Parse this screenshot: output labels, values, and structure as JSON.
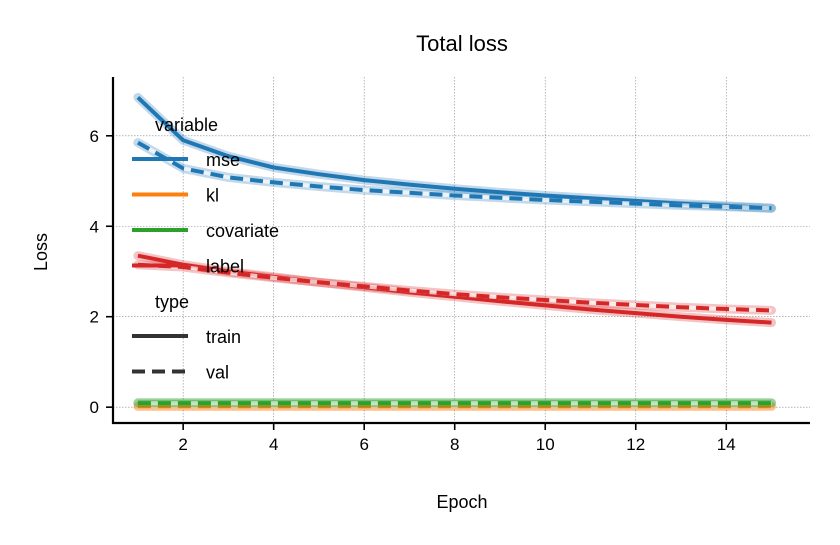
{
  "chart_data": {
    "type": "line",
    "title": "Total loss",
    "xlabel": "Epoch",
    "ylabel": "Loss",
    "xlim": [
      0.45,
      15.85
    ],
    "ylim": [
      -0.35,
      7.3
    ],
    "xticks": [
      2,
      4,
      6,
      8,
      10,
      12,
      14
    ],
    "yticks": [
      0,
      2,
      4,
      6
    ],
    "grid": true,
    "x": [
      1,
      2,
      3,
      4,
      5,
      6,
      7,
      8,
      9,
      10,
      11,
      12,
      13,
      14,
      15
    ],
    "series": [
      {
        "name": "mse",
        "type": "train",
        "color": "#1f77b4",
        "style": "solid",
        "values": [
          6.85,
          5.9,
          5.55,
          5.3,
          5.15,
          5.02,
          4.92,
          4.83,
          4.75,
          4.68,
          4.62,
          4.56,
          4.5,
          4.45,
          4.4
        ]
      },
      {
        "name": "mse",
        "type": "val",
        "color": "#1f77b4",
        "style": "dashed",
        "values": [
          5.85,
          5.28,
          5.08,
          4.97,
          4.88,
          4.8,
          4.74,
          4.68,
          4.63,
          4.58,
          4.54,
          4.5,
          4.46,
          4.43,
          4.4
        ]
      },
      {
        "name": "kl",
        "type": "train",
        "color": "#ff7f0e",
        "style": "solid",
        "values": [
          0.02,
          0.02,
          0.02,
          0.02,
          0.02,
          0.02,
          0.02,
          0.02,
          0.02,
          0.02,
          0.02,
          0.02,
          0.02,
          0.02,
          0.02
        ]
      },
      {
        "name": "kl",
        "type": "val",
        "color": "#ff7f0e",
        "style": "dashed",
        "values": [
          0.02,
          0.02,
          0.02,
          0.02,
          0.02,
          0.02,
          0.02,
          0.02,
          0.02,
          0.02,
          0.02,
          0.02,
          0.02,
          0.02,
          0.02
        ]
      },
      {
        "name": "covariate",
        "type": "train",
        "color": "#2ca02c",
        "style": "solid",
        "values": [
          0.1,
          0.1,
          0.1,
          0.1,
          0.1,
          0.1,
          0.1,
          0.1,
          0.1,
          0.1,
          0.1,
          0.1,
          0.1,
          0.1,
          0.1
        ]
      },
      {
        "name": "covariate",
        "type": "val",
        "color": "#2ca02c",
        "style": "dashed",
        "values": [
          0.09,
          0.09,
          0.09,
          0.09,
          0.09,
          0.09,
          0.09,
          0.09,
          0.09,
          0.09,
          0.09,
          0.09,
          0.09,
          0.09,
          0.09
        ]
      },
      {
        "name": "label",
        "type": "train",
        "color": "#d62728",
        "style": "solid",
        "values": [
          3.35,
          3.15,
          3.0,
          2.88,
          2.76,
          2.65,
          2.54,
          2.44,
          2.34,
          2.25,
          2.16,
          2.08,
          2.0,
          1.93,
          1.87
        ]
      },
      {
        "name": "label",
        "type": "val",
        "color": "#d62728",
        "style": "dashed",
        "values": [
          3.15,
          3.1,
          2.97,
          2.86,
          2.76,
          2.67,
          2.58,
          2.5,
          2.43,
          2.37,
          2.31,
          2.26,
          2.21,
          2.17,
          2.14
        ]
      }
    ],
    "legend": {
      "placement": "upper-left",
      "groups": [
        {
          "title": "variable",
          "entries": [
            {
              "label": "mse",
              "color": "#1f77b4",
              "style": "solid"
            },
            {
              "label": "kl",
              "color": "#ff7f0e",
              "style": "solid"
            },
            {
              "label": "covariate",
              "color": "#2ca02c",
              "style": "solid"
            },
            {
              "label": "label",
              "color": "#d62728",
              "style": "solid"
            }
          ]
        },
        {
          "title": "type",
          "entries": [
            {
              "label": "train",
              "color": "#333333",
              "style": "solid"
            },
            {
              "label": "val",
              "color": "#333333",
              "style": "dashed"
            }
          ]
        }
      ]
    }
  }
}
